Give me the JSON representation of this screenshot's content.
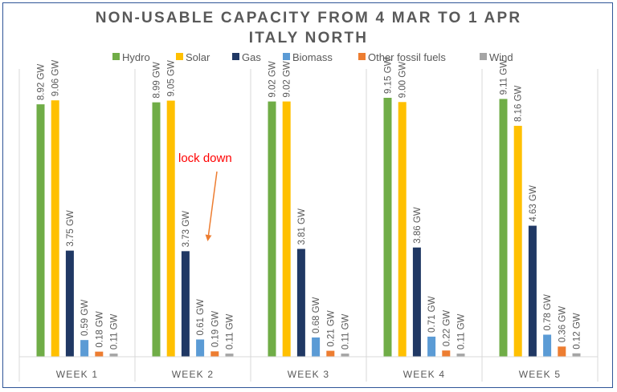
{
  "chart_data": {
    "type": "bar",
    "title": "NON-USABLE CAPACITY FROM 4 MAR TO 1 APR",
    "subtitle": "ITALY NORTH",
    "categories": [
      "WEEK 1",
      "WEEK 2",
      "WEEK 3",
      "WEEK 4",
      "WEEK 5"
    ],
    "unit": "GW",
    "ylim": [
      0,
      10
    ],
    "grid": false,
    "legend_position": "top",
    "series": [
      {
        "name": "Hydro",
        "color": "#70ad47",
        "values": [
          8.92,
          8.99,
          9.02,
          9.15,
          9.11
        ],
        "labels": [
          "8.92 GW",
          "8.99 GW",
          "9.02 GW",
          "9.15 GW",
          "9.11 GW"
        ]
      },
      {
        "name": "Solar",
        "color": "#ffc000",
        "values": [
          9.06,
          9.05,
          9.02,
          9.0,
          8.16
        ],
        "labels": [
          "9.06 GW",
          "9.05 GW",
          "9.02 GW",
          "9.00 GW",
          "8.16 GW"
        ]
      },
      {
        "name": "Gas",
        "color": "#203864",
        "values": [
          3.75,
          3.73,
          3.81,
          3.86,
          4.63
        ],
        "labels": [
          "3.75 GW",
          "3.73 GW",
          "3.81 GW",
          "3.86 GW",
          "4.63 GW"
        ]
      },
      {
        "name": "Biomass",
        "color": "#5b9bd5",
        "values": [
          0.59,
          0.61,
          0.68,
          0.71,
          0.78
        ],
        "labels": [
          "0.59 GW",
          "0.61 GW",
          "0.68 GW",
          "0.71 GW",
          "0.78 GW"
        ]
      },
      {
        "name": "Other fossil fuels",
        "color": "#ed7d31",
        "values": [
          0.18,
          0.19,
          0.21,
          0.22,
          0.36
        ],
        "labels": [
          "0.18 GW",
          "0.19 GW",
          "0.21 GW",
          "0.22 GW",
          "0.36 GW"
        ]
      },
      {
        "name": "Wind",
        "color": "#a5a5a5",
        "values": [
          0.11,
          0.11,
          0.11,
          0.11,
          0.12
        ],
        "labels": [
          "0.11 GW",
          "0.11 GW",
          "0.11 GW",
          "0.11 GW",
          "0.12 GW"
        ]
      }
    ],
    "annotation": {
      "text": "lock down",
      "category": "WEEK 2",
      "color": "#ff0000"
    }
  }
}
